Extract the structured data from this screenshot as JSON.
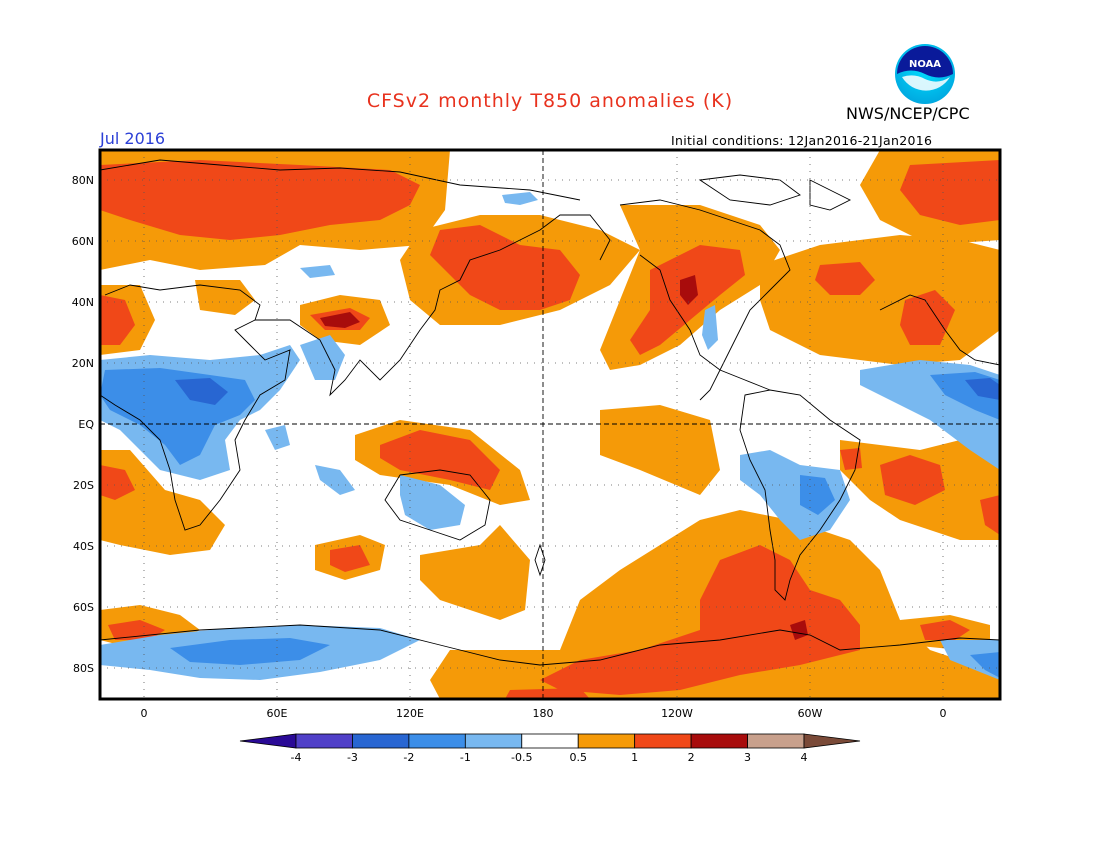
{
  "header": {
    "title": "CFSv2 monthly T850 anomalies (K)",
    "agency": "NWS/NCEP/CPC",
    "logo_text": "NOAA",
    "month": "Jul 2016",
    "initial_conditions": "Initial conditions: 12Jan2016-21Jan2016"
  },
  "axes": {
    "lat_labels": [
      "80N",
      "60N",
      "40N",
      "20N",
      "EQ",
      "20S",
      "40S",
      "60S",
      "80S"
    ],
    "lon_labels": [
      "0",
      "60E",
      "120E",
      "180",
      "120W",
      "60W",
      "0"
    ]
  },
  "colorbar": {
    "labels": [
      "-4",
      "-3",
      "-2",
      "-1",
      "-0.5",
      "0.5",
      "1",
      "2",
      "3",
      "4"
    ],
    "colors": [
      "#2a0a96",
      "#5040c8",
      "#2866d2",
      "#3c8ee8",
      "#78b8f0",
      "#ffffff",
      "#f59a08",
      "#f04818",
      "#a80c0c",
      "#c8a08c",
      "#7a4a38"
    ]
  },
  "colors": {
    "title": "#e8321e",
    "month": "#2b3fd6"
  }
}
